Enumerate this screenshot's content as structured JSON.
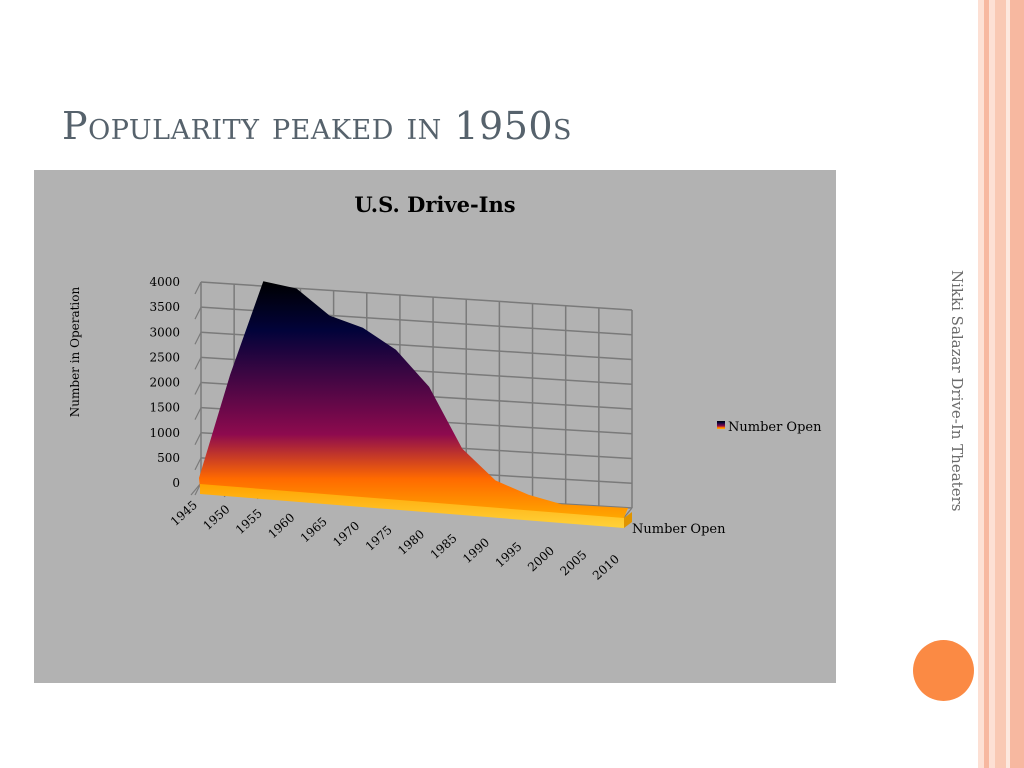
{
  "slide": {
    "title": "Popularity peaked in 1950s",
    "side_credit": "Nikki Salazar Drive-In Theaters"
  },
  "colors": {
    "title": "#56626c",
    "chart_background": "#b2b2b2",
    "stripe_light": "#fde0d4",
    "stripe_accent": "#f7b8a0",
    "accent_dot": "#fb8a44",
    "area_top": "#02033a",
    "area_mid": "#8d0a4e",
    "area_bottom": "#ffb700"
  },
  "chart_data": {
    "type": "area",
    "title": "U.S. Drive-Ins",
    "xlabel": "",
    "ylabel": "Number  in Operation",
    "depth_label": "Number Open",
    "categories": [
      "1945",
      "1950",
      "1955",
      "1960",
      "1965",
      "1970",
      "1975",
      "1980",
      "1985",
      "1990",
      "1995",
      "2000",
      "2005",
      "2010"
    ],
    "series": [
      {
        "name": "Number Open",
        "values": [
          100,
          2200,
          4100,
          4000,
          3500,
          3300,
          2900,
          2200,
          1000,
          400,
          150,
          -100,
          -200,
          -300
        ]
      }
    ],
    "yticks": [
      "0",
      "500",
      "1000",
      "1500",
      "2000",
      "2500",
      "3000",
      "3500",
      "4000"
    ],
    "ylim": [
      0,
      4000
    ],
    "grid": true,
    "three_d": true,
    "legend": {
      "position": "right",
      "entries": [
        "Number Open"
      ]
    }
  }
}
